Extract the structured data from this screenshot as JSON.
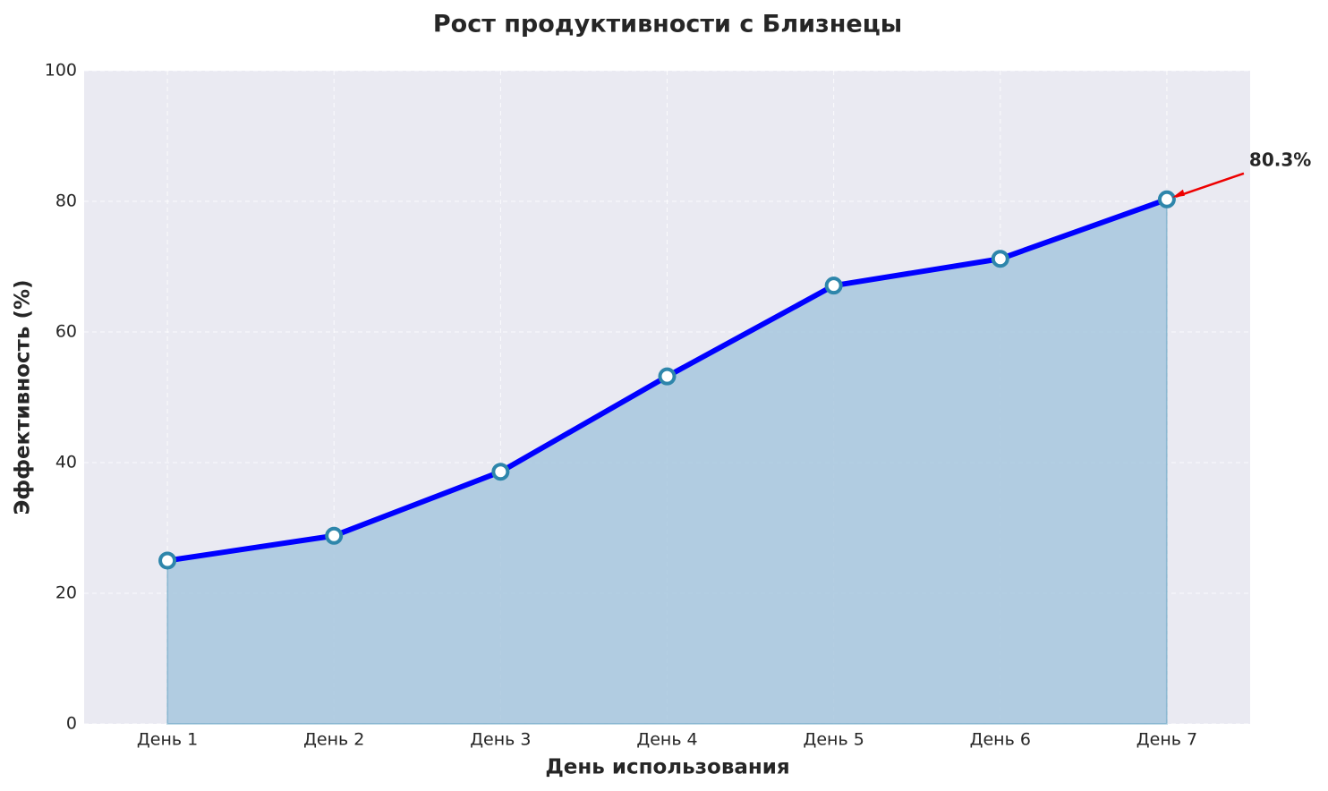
{
  "chart_data": {
    "type": "area_line",
    "title": "Рост продуктивности с Близнецы",
    "x_label": "День использования",
    "y_label": "Эффективность (%)",
    "categories": [
      "День 1",
      "День 2",
      "День 3",
      "День 4",
      "День 5",
      "День 6",
      "День 7"
    ],
    "values": [
      25.0,
      28.8,
      38.6,
      53.2,
      67.1,
      71.2,
      80.3
    ],
    "value_labels": [
      null,
      null,
      null,
      null,
      null,
      null,
      "80.3%"
    ],
    "color": "#0000ff",
    "marker_color": "#2e86ab",
    "fill_color": "#a3c4dc",
    "annotation_color": "#ee0000",
    "ylim": [
      0,
      100
    ],
    "yticks": [
      0,
      20,
      40,
      60,
      80,
      100
    ],
    "grid": true
  }
}
